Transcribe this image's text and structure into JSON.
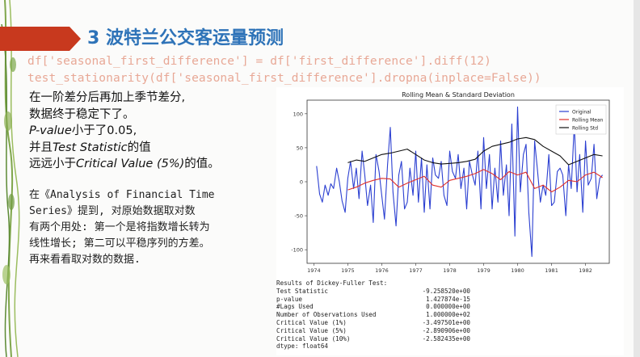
{
  "slide": {
    "title": "3 波特兰公交客运量预测",
    "code_line1": "df['seasonal_first_difference'] = df['first_difference'].diff(12)",
    "code_line2": "test_stationarity(df['seasonal_first_difference'].dropna(inplace=False))",
    "para1": {
      "line1": "在一阶差分后再加上季节差分,",
      "line2": "数据终于稳定下了。",
      "line3a": "P-value",
      "line3b": "小于了0.05,",
      "line4a": "并且",
      "line4b": "Test Statistic",
      "line4c": "的值",
      "line5a": "远远小于",
      "line5b": "Critical Value (5%)",
      "line5c": "的值。"
    },
    "para2": {
      "line1": "在《Analysis of Financial Time",
      "line2": "Series》提到, 对原始数据取对数",
      "line3": "有两个用处: 第一个是将指数增长转为",
      "line4": "线性增长; 第二可以平稳序列的方差。",
      "line5": "再来看看取对数的数据."
    }
  },
  "colors": {
    "title": "#2e73b8",
    "title_bar": "#c8391e",
    "code": "#e8a896",
    "original": "#2b3fd1",
    "rolling_mean": "#e0302a",
    "rolling_std": "#111111"
  },
  "chart_data": {
    "type": "line",
    "title": "Rolling Mean & Standard Deviation",
    "x_ticks": [
      "1974",
      "1975",
      "1976",
      "1977",
      "1978",
      "1979",
      "1980",
      "1981",
      "1982"
    ],
    "y_ticks": [
      "100",
      "50",
      "0",
      "-50",
      "-100"
    ],
    "ylim": [
      -120,
      120
    ],
    "xlim": [
      1973.8,
      1982.7
    ],
    "legend_position": "top-right",
    "series": [
      {
        "name": "Original",
        "color": "#2b3fd1",
        "x": [
          1974.08,
          1974.17,
          1974.25,
          1974.33,
          1974.42,
          1974.5,
          1974.58,
          1974.67,
          1974.75,
          1974.83,
          1974.92,
          1975.0,
          1975.08,
          1975.17,
          1975.25,
          1975.33,
          1975.42,
          1975.5,
          1975.58,
          1975.67,
          1975.75,
          1975.83,
          1975.92,
          1976.0,
          1976.08,
          1976.17,
          1976.25,
          1976.33,
          1976.42,
          1976.5,
          1976.58,
          1976.67,
          1976.75,
          1976.83,
          1976.92,
          1977.0,
          1977.08,
          1977.17,
          1977.25,
          1977.33,
          1977.42,
          1977.5,
          1977.58,
          1977.67,
          1977.75,
          1977.83,
          1977.92,
          1978.0,
          1978.08,
          1978.17,
          1978.25,
          1978.33,
          1978.42,
          1978.5,
          1978.58,
          1978.67,
          1978.75,
          1978.83,
          1978.92,
          1979.0,
          1979.08,
          1979.17,
          1979.25,
          1979.33,
          1979.42,
          1979.5,
          1979.58,
          1979.67,
          1979.75,
          1979.83,
          1979.92,
          1980.0,
          1980.08,
          1980.17,
          1980.25,
          1980.33,
          1980.42,
          1980.5,
          1980.58,
          1980.67,
          1980.75,
          1980.83,
          1980.92,
          1981.0,
          1981.08,
          1981.17,
          1981.25,
          1981.33,
          1981.42,
          1981.5,
          1981.58,
          1981.67,
          1981.75,
          1981.83,
          1981.92,
          1982.0,
          1982.08,
          1982.17,
          1982.25,
          1982.33,
          1982.42,
          1982.5
        ],
        "values": [
          23,
          -18,
          -30,
          -5,
          -20,
          -3,
          -10,
          20,
          0,
          -28,
          -45,
          5,
          30,
          -10,
          20,
          -25,
          45,
          10,
          -35,
          -5,
          -60,
          40,
          15,
          -20,
          -55,
          25,
          80,
          -15,
          -65,
          10,
          30,
          -40,
          -30,
          20,
          -20,
          45,
          -30,
          35,
          -45,
          25,
          -40,
          35,
          10,
          5,
          30,
          -20,
          -35,
          45,
          15,
          5,
          40,
          -10,
          20,
          -40,
          30,
          10,
          -5,
          45,
          -40,
          65,
          -10,
          40,
          -40,
          20,
          -30,
          60,
          -20,
          25,
          -50,
          85,
          -80,
          110,
          -15,
          40,
          55,
          -45,
          -110,
          60,
          20,
          -30,
          -5,
          -20,
          40,
          -35,
          -30,
          15,
          20,
          10,
          -50,
          25,
          -10,
          85,
          -15,
          40,
          -45,
          60,
          -5,
          5,
          55,
          -25,
          5,
          10
        ]
      },
      {
        "name": "Rolling Mean",
        "color": "#e0302a",
        "x": [
          1975.0,
          1975.25,
          1975.5,
          1975.75,
          1976.0,
          1976.25,
          1976.5,
          1976.75,
          1977.0,
          1977.25,
          1977.5,
          1977.75,
          1978.0,
          1978.25,
          1978.5,
          1978.75,
          1979.0,
          1979.25,
          1979.5,
          1979.75,
          1980.0,
          1980.25,
          1980.5,
          1980.75,
          1981.0,
          1981.25,
          1981.5,
          1981.75,
          1982.0,
          1982.25,
          1982.5
        ],
        "values": [
          -12,
          -8,
          -2,
          2,
          5,
          4,
          -8,
          -2,
          3,
          8,
          -5,
          -8,
          2,
          5,
          8,
          12,
          18,
          12,
          3,
          15,
          10,
          14,
          -10,
          -5,
          -15,
          -8,
          2,
          0,
          10,
          14,
          6
        ]
      },
      {
        "name": "Rolling Std",
        "color": "#111111",
        "x": [
          1975.0,
          1975.25,
          1975.5,
          1975.75,
          1976.0,
          1976.25,
          1976.5,
          1976.75,
          1977.0,
          1977.25,
          1977.5,
          1977.75,
          1978.0,
          1978.25,
          1978.5,
          1978.75,
          1979.0,
          1979.25,
          1979.5,
          1979.75,
          1980.0,
          1980.25,
          1980.5,
          1980.75,
          1981.0,
          1981.25,
          1981.5,
          1981.75,
          1982.0,
          1982.25,
          1982.5
        ],
        "values": [
          28,
          32,
          30,
          35,
          40,
          42,
          45,
          48,
          40,
          32,
          28,
          26,
          27,
          28,
          30,
          33,
          45,
          52,
          55,
          58,
          63,
          65,
          62,
          52,
          45,
          38,
          25,
          30,
          35,
          40,
          38
        ]
      }
    ]
  },
  "dickey_fuller": {
    "header": "Results of Dickey-Fuller Test:",
    "rows": [
      {
        "key": "Test Statistic",
        "value": "-9.258520e+00"
      },
      {
        "key": "p-value",
        "value": "1.427874e-15"
      },
      {
        "key": "#Lags Used",
        "value": "0.000000e+00"
      },
      {
        "key": "Number of Observations Used",
        "value": "1.000000e+02"
      },
      {
        "key": "Critical Value (1%)",
        "value": "-3.497501e+00"
      },
      {
        "key": "Critical Value (5%)",
        "value": "-2.890906e+00"
      },
      {
        "key": "Critical Value (10%)",
        "value": "-2.582435e+00"
      }
    ],
    "dtype": "dtype: float64"
  }
}
